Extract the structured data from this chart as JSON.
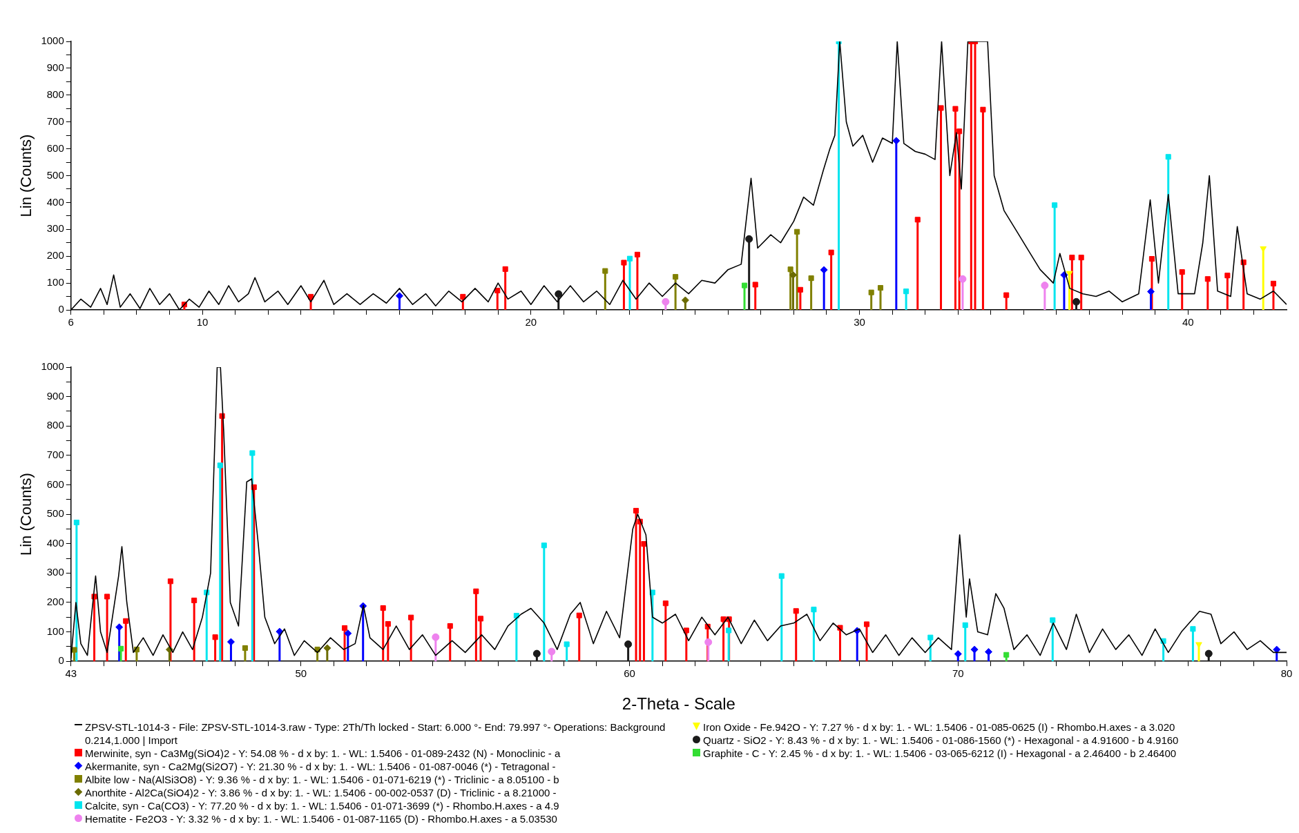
{
  "chart_data": [
    {
      "type": "line",
      "ylabel": "Lin (Counts)",
      "xlim": [
        6,
        43
      ],
      "ylim": [
        0,
        1000
      ],
      "xticks": [
        6,
        {
          "value": 7,
          "label": null
        },
        {
          "value": 8,
          "label": null
        },
        {
          "value": 9,
          "label": null
        },
        10,
        {
          "value": 11,
          "label": null
        },
        {
          "value": 12,
          "label": null
        },
        {
          "value": 13,
          "label": null
        },
        {
          "value": 14,
          "label": null
        },
        {
          "value": 15,
          "label": null
        },
        {
          "value": 16,
          "label": null
        },
        {
          "value": 17,
          "label": null
        },
        {
          "value": 18,
          "label": null
        },
        {
          "value": 19,
          "label": null
        },
        20,
        {
          "value": 21,
          "label": null
        },
        {
          "value": 22,
          "label": null
        },
        {
          "value": 23,
          "label": null
        },
        {
          "value": 24,
          "label": null
        },
        {
          "value": 25,
          "label": null
        },
        {
          "value": 26,
          "label": null
        },
        {
          "value": 27,
          "label": null
        },
        {
          "value": 28,
          "label": null
        },
        {
          "value": 29,
          "label": null
        },
        30,
        {
          "value": 31,
          "label": null
        },
        {
          "value": 32,
          "label": null
        },
        {
          "value": 33,
          "label": null
        },
        {
          "value": 34,
          "label": null
        },
        {
          "value": 35,
          "label": null
        },
        {
          "value": 36,
          "label": null
        },
        {
          "value": 37,
          "label": null
        },
        {
          "value": 38,
          "label": null
        },
        {
          "value": 39,
          "label": null
        },
        40,
        {
          "value": 41,
          "label": null
        },
        {
          "value": 42,
          "label": null
        }
      ],
      "yticks": [
        0,
        {
          "value": 50,
          "label": null
        },
        100,
        {
          "value": 150,
          "label": null
        },
        200,
        {
          "value": 250,
          "label": null
        },
        300,
        {
          "value": 350,
          "label": null
        },
        400,
        {
          "value": 450,
          "label": null
        },
        500,
        {
          "value": 550,
          "label": null
        },
        600,
        {
          "value": 650,
          "label": null
        },
        700,
        {
          "value": 750,
          "label": null
        },
        800,
        {
          "value": 850,
          "label": null
        },
        900,
        {
          "value": 950,
          "label": null
        },
        1000
      ],
      "series": [
        {
          "type": "line",
          "marker": "none",
          "color": "#000000",
          "x": [
            6,
            6.3,
            6.6,
            6.9,
            7.1,
            7.3,
            7.5,
            7.8,
            8.1,
            8.4,
            8.7,
            9.0,
            9.3,
            9.6,
            9.9,
            10.2,
            10.5,
            10.8,
            11.1,
            11.4,
            11.6,
            11.9,
            12.3,
            12.6,
            13.0,
            13.3,
            13.7,
            14.0,
            14.4,
            14.8,
            15.2,
            15.6,
            16.0,
            16.4,
            16.8,
            17.1,
            17.5,
            17.9,
            18.3,
            18.7,
            19.0,
            19.3,
            19.7,
            20.0,
            20.4,
            20.8,
            21.2,
            21.6,
            22.0,
            22.4,
            22.8,
            23.2,
            23.6,
            24.0,
            24.4,
            24.8,
            25.2,
            25.6,
            26.0,
            26.4,
            26.7,
            26.9,
            27.3,
            27.6,
            28.0,
            28.3,
            28.6,
            28.9,
            29.1,
            29.25,
            29.4,
            29.6,
            29.8,
            30.1,
            30.4,
            30.7,
            31.0,
            31.15,
            31.35,
            31.7,
            32.0,
            32.3,
            32.5,
            32.75,
            32.95,
            33.1,
            33.3,
            33.9,
            34.1,
            34.4,
            34.8,
            35.2,
            35.5,
            35.9,
            36.1,
            36.4,
            36.8,
            37.2,
            37.6,
            38.0,
            38.5,
            38.85,
            39.1,
            39.4,
            39.7,
            40.2,
            40.45,
            40.65,
            40.9,
            41.3,
            41.5,
            41.8,
            42.2,
            42.6,
            43
          ],
          "values": [
            0,
            40,
            10,
            80,
            20,
            130,
            10,
            60,
            5,
            80,
            20,
            60,
            0,
            40,
            10,
            70,
            20,
            90,
            30,
            60,
            120,
            30,
            70,
            20,
            90,
            30,
            110,
            20,
            60,
            20,
            60,
            25,
            80,
            20,
            60,
            15,
            70,
            30,
            80,
            30,
            100,
            40,
            70,
            20,
            90,
            30,
            90,
            30,
            70,
            20,
            110,
            40,
            100,
            50,
            100,
            60,
            110,
            100,
            150,
            170,
            490,
            230,
            280,
            250,
            330,
            420,
            390,
            520,
            600,
            650,
            1000,
            700,
            610,
            650,
            550,
            640,
            620,
            1000,
            620,
            590,
            580,
            560,
            1000,
            500,
            660,
            450,
            1000,
            1000,
            500,
            370,
            290,
            210,
            150,
            100,
            210,
            80,
            60,
            50,
            70,
            30,
            60,
            410,
            100,
            430,
            60,
            60,
            250,
            500,
            70,
            50,
            310,
            60,
            40,
            70,
            20
          ]
        },
        {
          "type": "lollipop",
          "marker": "square",
          "color": "#ff0000",
          "x": [
            9.45,
            13.3,
            17.93,
            18.98,
            19.22,
            22.83,
            23.24,
            26.83,
            28.2,
            29.14,
            31.77,
            32.48,
            32.92,
            33.04,
            33.4,
            33.52,
            33.76,
            34.47,
            36.47,
            36.75,
            38.9,
            39.82,
            40.6,
            41.2,
            41.69,
            42.6
          ],
          "values": [
            20,
            49,
            49,
            72,
            152,
            176,
            206,
            94,
            75,
            214,
            336,
            752,
            749,
            665,
            1000,
            1000,
            746,
            55,
            195,
            195,
            190,
            141,
            115,
            128,
            177,
            98
          ]
        },
        {
          "type": "lollipop",
          "marker": "diamond",
          "color": "#0000ff",
          "x": [
            16.0,
            28.92,
            31.12,
            36.23,
            38.87
          ],
          "values": [
            52,
            149,
            630,
            130,
            68
          ]
        },
        {
          "type": "lollipop",
          "marker": "square",
          "color": "#808000",
          "x": [
            22.26,
            24.4,
            27.9,
            28.1,
            28.53,
            30.36,
            30.64
          ],
          "values": [
            145,
            123,
            151,
            291,
            118,
            65,
            82
          ]
        },
        {
          "type": "lollipop",
          "marker": "diamond",
          "color": "#6b6b00",
          "x": [
            24.7,
            27.98
          ],
          "values": [
            36,
            130
          ]
        },
        {
          "type": "lollipop",
          "marker": "square",
          "color": "#00e5ee",
          "x": [
            23.01,
            29.37,
            31.42,
            35.94,
            39.4
          ],
          "values": [
            191,
            1000,
            69,
            390,
            570
          ]
        },
        {
          "type": "lollipop",
          "marker": "circle",
          "color": "#ee82ee",
          "x": [
            24.1,
            33.14,
            35.64
          ],
          "values": [
            30,
            115,
            91
          ]
        },
        {
          "type": "lollipop",
          "marker": "triangle",
          "color": "#ffff00",
          "x": [
            36.39,
            42.29
          ],
          "values": [
            137,
            229
          ]
        },
        {
          "type": "lollipop",
          "marker": "circle",
          "color": "#1a1a1a",
          "x": [
            20.84,
            26.64,
            36.6
          ],
          "values": [
            59,
            264,
            30
          ]
        },
        {
          "type": "lollipop",
          "marker": "square",
          "color": "#33dd33",
          "x": [
            26.5
          ],
          "values": [
            91
          ]
        }
      ]
    },
    {
      "type": "line",
      "ylabel": "Lin (Counts)",
      "xlabel": "2-Theta - Scale",
      "legend": "bottom",
      "xlim": [
        43,
        80
      ],
      "ylim": [
        0,
        1000
      ],
      "xticks": [
        43,
        {
          "value": 44,
          "label": null
        },
        {
          "value": 45,
          "label": null
        },
        {
          "value": 46,
          "label": null
        },
        {
          "value": 47,
          "label": null
        },
        {
          "value": 48,
          "label": null
        },
        {
          "value": 49,
          "label": null
        },
        50,
        {
          "value": 51,
          "label": null
        },
        {
          "value": 52,
          "label": null
        },
        {
          "value": 53,
          "label": null
        },
        {
          "value": 54,
          "label": null
        },
        {
          "value": 55,
          "label": null
        },
        {
          "value": 56,
          "label": null
        },
        {
          "value": 57,
          "label": null
        },
        {
          "value": 58,
          "label": null
        },
        {
          "value": 59,
          "label": null
        },
        60,
        {
          "value": 61,
          "label": null
        },
        {
          "value": 62,
          "label": null
        },
        {
          "value": 63,
          "label": null
        },
        {
          "value": 64,
          "label": null
        },
        {
          "value": 65,
          "label": null
        },
        {
          "value": 66,
          "label": null
        },
        {
          "value": 67,
          "label": null
        },
        {
          "value": 68,
          "label": null
        },
        {
          "value": 69,
          "label": null
        },
        70,
        {
          "value": 71,
          "label": null
        },
        {
          "value": 72,
          "label": null
        },
        {
          "value": 73,
          "label": null
        },
        {
          "value": 74,
          "label": null
        },
        {
          "value": 75,
          "label": null
        },
        {
          "value": 76,
          "label": null
        },
        {
          "value": 77,
          "label": null
        },
        {
          "value": 78,
          "label": null
        },
        {
          "value": 79,
          "label": null
        },
        80
      ],
      "yticks": [
        0,
        {
          "value": 50,
          "label": null
        },
        100,
        {
          "value": 150,
          "label": null
        },
        200,
        {
          "value": 250,
          "label": null
        },
        300,
        {
          "value": 350,
          "label": null
        },
        400,
        {
          "value": 450,
          "label": null
        },
        500,
        {
          "value": 550,
          "label": null
        },
        600,
        {
          "value": 650,
          "label": null
        },
        700,
        {
          "value": 750,
          "label": null
        },
        800,
        {
          "value": 850,
          "label": null
        },
        900,
        {
          "value": 950,
          "label": null
        },
        1000
      ],
      "series": [
        {
          "type": "line",
          "marker": "none",
          "name": "ZPSV-STL-1014-3 - File: ZPSV-STL-1014-3.raw - Type: 2Th/Th locked - Start: 6.000 °- End: 79.997 °- Operations: Background 0.214,1.000 | Import",
          "color": "#000000",
          "x": [
            43,
            43.15,
            43.3,
            43.5,
            43.75,
            43.9,
            44.1,
            44.45,
            44.55,
            44.7,
            44.9,
            45.2,
            45.5,
            45.8,
            46.1,
            46.4,
            46.7,
            47.0,
            47.25,
            47.45,
            47.55,
            47.65,
            47.85,
            48.1,
            48.35,
            48.5,
            48.7,
            48.9,
            49.2,
            49.5,
            49.8,
            50.1,
            50.5,
            50.9,
            51.3,
            51.65,
            51.9,
            52.1,
            52.5,
            52.9,
            53.3,
            53.7,
            54.1,
            54.6,
            55.0,
            55.5,
            55.9,
            56.3,
            56.7,
            57.0,
            57.4,
            57.8,
            58.2,
            58.5,
            58.9,
            59.3,
            59.7,
            60.1,
            60.25,
            60.5,
            60.7,
            61.0,
            61.4,
            61.8,
            62.2,
            62.6,
            63.0,
            63.4,
            63.8,
            64.2,
            64.6,
            65.0,
            65.4,
            65.8,
            66.2,
            66.6,
            67.0,
            67.4,
            67.8,
            68.2,
            68.6,
            69.0,
            69.4,
            69.8,
            70.05,
            70.25,
            70.35,
            70.6,
            70.9,
            71.15,
            71.4,
            71.7,
            72.1,
            72.5,
            72.9,
            73.3,
            73.6,
            74.0,
            74.4,
            74.8,
            75.2,
            75.6,
            76.0,
            76.4,
            76.8,
            77.35,
            77.7,
            78.0,
            78.4,
            78.8,
            79.2,
            79.6,
            80
          ],
          "values": [
            10,
            200,
            60,
            20,
            290,
            100,
            30,
            290,
            390,
            200,
            30,
            80,
            20,
            90,
            30,
            100,
            40,
            150,
            300,
            1000,
            1000,
            780,
            200,
            120,
            610,
            620,
            400,
            150,
            60,
            110,
            20,
            70,
            30,
            80,
            40,
            60,
            190,
            80,
            40,
            120,
            40,
            90,
            20,
            70,
            30,
            90,
            40,
            120,
            160,
            180,
            130,
            40,
            160,
            200,
            60,
            170,
            80,
            450,
            500,
            430,
            150,
            130,
            160,
            70,
            150,
            90,
            150,
            60,
            140,
            70,
            120,
            130,
            160,
            70,
            130,
            90,
            110,
            30,
            90,
            20,
            80,
            30,
            80,
            40,
            430,
            150,
            280,
            100,
            90,
            230,
            180,
            40,
            90,
            20,
            130,
            40,
            160,
            30,
            110,
            40,
            90,
            20,
            110,
            30,
            100,
            170,
            160,
            60,
            100,
            40,
            70,
            30,
            30
          ]
        },
        {
          "type": "lollipop",
          "marker": "square",
          "name": "Merwinite, syn - Ca3Mg(SiO4)2 - Y: 54.08 % - d x by: 1. - WL: 1.5406 - 01-089-2432 (N) - Monoclinic - a",
          "color": "#ff0000",
          "x": [
            43.71,
            44.1,
            44.67,
            46.03,
            46.75,
            47.39,
            47.6,
            48.57,
            51.33,
            52.5,
            52.65,
            53.35,
            54.54,
            55.33,
            55.47,
            58.47,
            60.2,
            60.32,
            60.44,
            61.1,
            61.73,
            62.38,
            62.86,
            63.03,
            65.07,
            66.41,
            67.22
          ],
          "values": [
            220,
            220,
            137,
            272,
            207,
            82,
            834,
            592,
            113,
            181,
            127,
            149,
            120,
            238,
            145,
            156,
            512,
            475,
            399,
            197,
            105,
            118,
            143,
            143,
            171,
            114,
            126
          ]
        },
        {
          "type": "lollipop",
          "marker": "diamond",
          "name": "Akermanite, syn - Ca2Mg(Si2O7) - Y: 21.30 % - d x by: 1. - WL: 1.5406 - 01-087-0046 (*) - Tetragonal -",
          "color": "#0000ff",
          "x": [
            44.47,
            47.87,
            49.35,
            51.43,
            51.89,
            66.93,
            70.0,
            70.5,
            70.93,
            79.7
          ],
          "values": [
            116,
            66,
            101,
            95,
            188,
            104,
            25,
            40,
            32,
            40
          ]
        },
        {
          "type": "lollipop",
          "marker": "square",
          "name": "Albite low - Na(AlSi3O8) - Y: 9.36 % - d x by: 1. - WL: 1.5406 - 01-071-6219 (*) - Triclinic - a 8.05100 - b",
          "color": "#808000",
          "x": [
            43.1,
            45.0,
            48.3,
            50.5
          ],
          "values": [
            39,
            40,
            45,
            40
          ]
        },
        {
          "type": "lollipop",
          "marker": "diamond",
          "name": "Anorthite - Al2Ca(SiO4)2 - Y: 3.86 % - d x by: 1. - WL: 1.5406 - 00-002-0537 (D) - Triclinic - a 8.21000 -",
          "color": "#6b6b00",
          "x": [
            46.0,
            50.8
          ],
          "values": [
            40,
            45
          ]
        },
        {
          "type": "lollipop",
          "marker": "square",
          "name": "Calcite, syn - Ca(CO3) - Y: 77.20 % - d x by: 1. - WL: 1.5406 - 01-071-3699 (*) - Rhombo.H.axes - a 4.9",
          "color": "#00e5ee",
          "x": [
            43.17,
            47.13,
            47.54,
            48.52,
            56.56,
            57.4,
            58.09,
            60.7,
            63.02,
            64.63,
            65.61,
            69.16,
            70.22,
            72.88,
            76.25,
            77.15
          ],
          "values": [
            472,
            234,
            666,
            708,
            155,
            394,
            58,
            234,
            105,
            290,
            176,
            81,
            123,
            140,
            69,
            110
          ]
        },
        {
          "type": "lollipop",
          "marker": "circle",
          "name": "Hematite - Fe2O3 - Y: 3.32 % - d x by: 1. - WL: 1.5406 - 01-087-1165 (D) - Rhombo.H.axes - a 5.03530",
          "color": "#ee82ee",
          "x": [
            54.1,
            57.63,
            62.4
          ],
          "values": [
            82,
            33,
            65
          ]
        },
        {
          "type": "lollipop",
          "marker": "triangle",
          "name": "Iron Oxide - Fe.942O - Y: 7.27 % - d x by: 1. - WL: 1.5406 - 01-085-0625 (I) - Rhombo.H.axes - a 3.020",
          "color": "#ffff00",
          "x": [
            77.33
          ],
          "values": [
            58
          ]
        },
        {
          "type": "lollipop",
          "marker": "circle",
          "name": "Quartz - SiO2 - Y: 8.43 % - d x by: 1. - WL: 1.5406 - 01-086-1560 (*) - Hexagonal - a 4.91600 - b 4.9160",
          "color": "#1a1a1a",
          "x": [
            57.18,
            59.96,
            77.63
          ],
          "values": [
            26,
            58,
            26
          ]
        },
        {
          "type": "lollipop",
          "marker": "square",
          "name": "Graphite - C - Y: 2.45 % - d x by: 1. - WL: 1.5406 - 03-065-6212 (I) - Hexagonal - a 2.46400 - b 2.46400",
          "color": "#33dd33",
          "x": [
            44.52,
            71.47
          ],
          "values": [
            43,
            22
          ]
        }
      ]
    }
  ]
}
